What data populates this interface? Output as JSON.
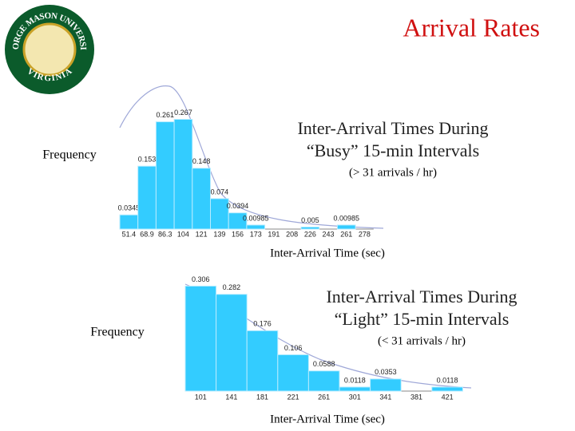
{
  "slide": {
    "title": "Arrival Rates",
    "logo_top": "GEORGE MASON UNIVERSITY",
    "logo_bottom": "VIRGINIA"
  },
  "chart_data": [
    {
      "type": "bar",
      "title": [
        "Inter-Arrival Times During",
        "“Busy” 15-min Intervals"
      ],
      "subtitle": "(> 31 arrivals / hr)",
      "y_label": "Frequency",
      "x_label": "Inter-Arrival Time (sec)",
      "color": "#33ccff",
      "categories": [
        "51.4",
        "68.9",
        "86.3",
        "104",
        "121",
        "139",
        "156",
        "173",
        "191",
        "208",
        "226",
        "243",
        "261",
        "278"
      ],
      "values": [
        0.0345,
        0.153,
        0.261,
        0.267,
        0.148,
        0.074,
        0.0394,
        0.00985,
        0,
        0,
        0.005,
        0,
        0.00985,
        0
      ]
    },
    {
      "type": "bar",
      "title": [
        "Inter-Arrival Times During",
        "“Light” 15-min Intervals"
      ],
      "subtitle": "(< 31 arrivals / hr)",
      "y_label": "Frequency",
      "x_label": "Inter-Arrival Time (sec)",
      "color": "#33ccff",
      "categories": [
        "101",
        "141",
        "181",
        "221",
        "261",
        "301",
        "341",
        "381",
        "421"
      ],
      "values": [
        0.306,
        0.282,
        0.176,
        0.106,
        0.0588,
        0.0118,
        0.0353,
        0,
        0.0118
      ]
    }
  ]
}
